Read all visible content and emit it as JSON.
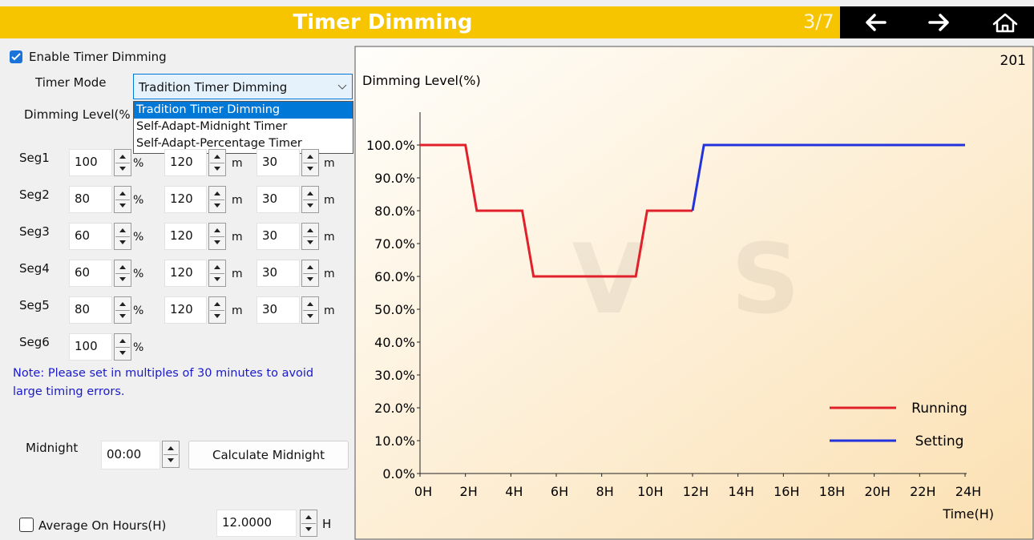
{
  "header": {
    "title": "Timer Dimming",
    "page": "3/7"
  },
  "form": {
    "enable_label": "Enable Timer Dimming",
    "enable_checked": true,
    "mode_label": "Timer Mode",
    "mode_selected": "Tradition Timer Dimming",
    "mode_options": [
      "Tradition Timer Dimming",
      "Self-Adapt-Midnight Timer",
      "Self-Adapt-Percentage Timer"
    ],
    "level_label": "Dimming Level(%",
    "segments": [
      {
        "label": "Seg1",
        "level": "100",
        "level_unit": "%",
        "time": "120",
        "time_unit": "m",
        "fade": "30",
        "fade_unit": "m"
      },
      {
        "label": "Seg2",
        "level": "80",
        "level_unit": "%",
        "time": "120",
        "time_unit": "m",
        "fade": "30",
        "fade_unit": "m"
      },
      {
        "label": "Seg3",
        "level": "60",
        "level_unit": "%",
        "time": "120",
        "time_unit": "m",
        "fade": "30",
        "fade_unit": "m"
      },
      {
        "label": "Seg4",
        "level": "60",
        "level_unit": "%",
        "time": "120",
        "time_unit": "m",
        "fade": "30",
        "fade_unit": "m"
      },
      {
        "label": "Seg5",
        "level": "80",
        "level_unit": "%",
        "time": "120",
        "time_unit": "m",
        "fade": "30",
        "fade_unit": "m"
      },
      {
        "label": "Seg6",
        "level": "100",
        "level_unit": "%"
      }
    ],
    "note": [
      "Note: Please set in multiples of 30 minutes to avoid",
      "large timing errors."
    ],
    "midnight_label": "Midnight",
    "midnight_value": "00:00",
    "calc_button": "Calculate Midnight",
    "avg_label": "Average On Hours(H)",
    "avg_checked": false,
    "avg_value": "12.0000",
    "avg_unit": "H"
  },
  "chart_data": {
    "type": "line",
    "corner_label": "201",
    "ylabel": "Dimming Level(%)",
    "xlabel": "Time(H)",
    "watermark": [
      "V",
      "S"
    ],
    "xlim": [
      0,
      24
    ],
    "ylim": [
      0,
      100
    ],
    "xticks": [
      {
        "value": 0,
        "label": "0H"
      },
      {
        "value": 2,
        "label": "2H"
      },
      {
        "value": 4,
        "label": "4H"
      },
      {
        "value": 6,
        "label": "6H"
      },
      {
        "value": 8,
        "label": "8H"
      },
      {
        "value": 10,
        "label": "10H"
      },
      {
        "value": 12,
        "label": "12H"
      },
      {
        "value": 14,
        "label": "14H"
      },
      {
        "value": 16,
        "label": "16H"
      },
      {
        "value": 18,
        "label": "18H"
      },
      {
        "value": 20,
        "label": "20H"
      },
      {
        "value": 22,
        "label": "22H"
      },
      {
        "value": 24,
        "label": "24H"
      }
    ],
    "yticks": [
      {
        "value": 0,
        "label": "0.0%"
      },
      {
        "value": 10,
        "label": "10.0%"
      },
      {
        "value": 20,
        "label": "20.0%"
      },
      {
        "value": 30,
        "label": "30.0%"
      },
      {
        "value": 40,
        "label": "40.0%"
      },
      {
        "value": 50,
        "label": "50.0%"
      },
      {
        "value": 60,
        "label": "60.0%"
      },
      {
        "value": 70,
        "label": "70.0%"
      },
      {
        "value": 80,
        "label": "80.0%"
      },
      {
        "value": 90,
        "label": "90.0%"
      },
      {
        "value": 100,
        "label": "100.0%"
      }
    ],
    "series": [
      {
        "name": "Running",
        "color": "#e0202a",
        "x": [
          0,
          2,
          2.5,
          4.5,
          5,
          9.5,
          10,
          12
        ],
        "values": [
          100,
          100,
          80,
          80,
          60,
          60,
          80,
          80
        ]
      },
      {
        "name": "Setting",
        "color": "#2233dd",
        "x": [
          12,
          12.5,
          24
        ],
        "values": [
          80,
          100,
          100
        ]
      }
    ]
  }
}
